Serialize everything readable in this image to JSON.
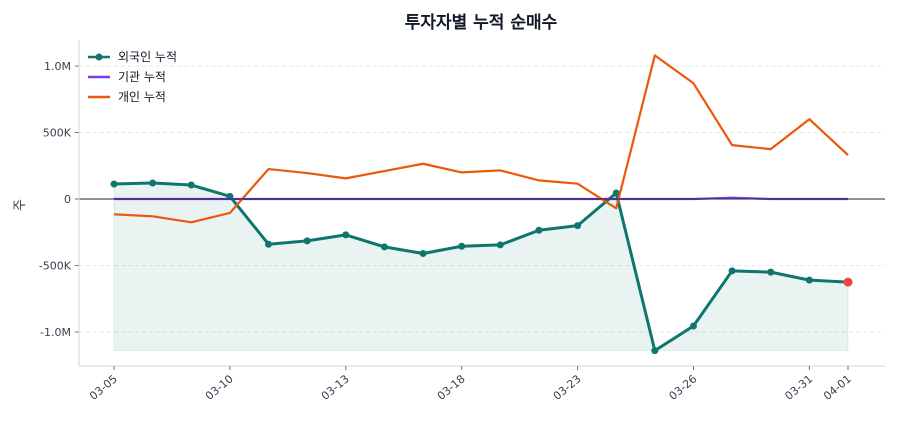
{
  "chart_data": {
    "type": "line",
    "title": "투자자별 누적 순매수",
    "xlabel": "",
    "ylabel": "주",
    "ylim": [
      -1250000,
      1200000
    ],
    "yticks": [
      -1000000,
      -500000,
      0,
      500000,
      1000000
    ],
    "ytick_labels": [
      "-1.0M",
      "-500K",
      "0",
      "500K",
      "1.0M"
    ],
    "categories": [
      "03-05",
      "",
      "",
      "03-10",
      "",
      "",
      "03-13",
      "",
      "",
      "03-18",
      "",
      "",
      "03-23",
      "",
      "",
      "03-26",
      "",
      "",
      "03-31",
      "04-01"
    ],
    "grid": "horizontal dashed",
    "legend_position": "top-left",
    "series": [
      {
        "name": "외국인 누적",
        "color": "#0f766e",
        "markers": true,
        "fill_to_min": true,
        "values": [
          113000,
          120000,
          105000,
          20000,
          -340000,
          -315000,
          -270000,
          -360000,
          -410000,
          -355000,
          -345000,
          -235000,
          -200000,
          45000,
          -1140000,
          -955000,
          -540000,
          -550000,
          -610000,
          -625000
        ]
      },
      {
        "name": "기관 누적",
        "color": "#7c3aed",
        "markers": false,
        "values": [
          0,
          0,
          0,
          0,
          0,
          0,
          0,
          0,
          0,
          0,
          0,
          0,
          0,
          0,
          0,
          0,
          10000,
          0,
          0,
          0
        ]
      },
      {
        "name": "개인 누적",
        "color": "#ea580c",
        "markers": false,
        "values": [
          -115000,
          -130000,
          -175000,
          -105000,
          225000,
          195000,
          155000,
          210000,
          265000,
          200000,
          215000,
          140000,
          115000,
          -70000,
          1080000,
          870000,
          405000,
          375000,
          600000,
          330000
        ]
      }
    ],
    "last_point_color": "#ef4444"
  }
}
